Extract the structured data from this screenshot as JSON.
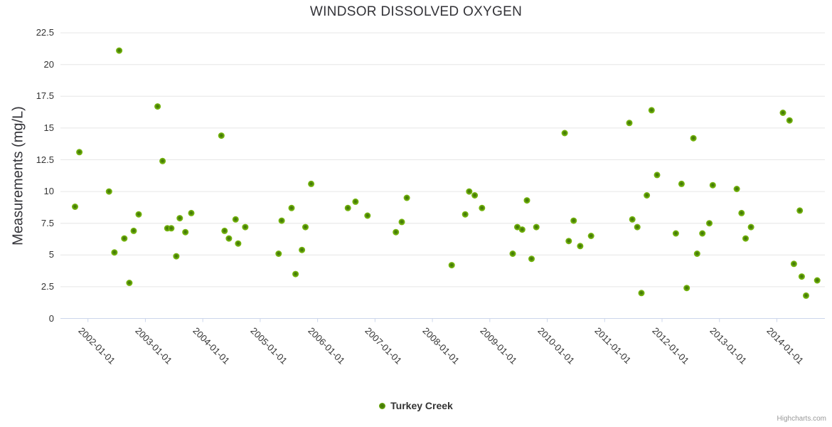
{
  "title": "WINDSOR DISSOLVED OXYGEN",
  "y_axis": {
    "title": "Measurements (mg/L)",
    "ticks": [
      {
        "label": "22.5",
        "value": 22.5
      },
      {
        "label": "20",
        "value": 20
      },
      {
        "label": "17.5",
        "value": 17.5
      },
      {
        "label": "15",
        "value": 15
      },
      {
        "label": "12.5",
        "value": 12.5
      },
      {
        "label": "10",
        "value": 10
      },
      {
        "label": "7.5",
        "value": 7.5
      },
      {
        "label": "5",
        "value": 5
      },
      {
        "label": "2.5",
        "value": 2.5
      },
      {
        "label": "0",
        "value": 0
      }
    ]
  },
  "x_axis": {
    "tick_labels": [
      "2002-01-01",
      "2003-01-01",
      "2004-01-01",
      "2005-01-01",
      "2006-01-01",
      "2007-01-01",
      "2008-01-01",
      "2009-01-01",
      "2010-01-01",
      "2011-01-01",
      "2012-01-01",
      "2013-01-01",
      "2014-01-01"
    ]
  },
  "legend": {
    "series_label": "Turkey Creek"
  },
  "credit": "Highcharts.com",
  "colors": {
    "marker_outer": "#74b40d",
    "marker_mid": "#4c8408",
    "marker_inner": "#3f7407",
    "grid": "#e6e6e6",
    "axis_line": "#ccd6eb",
    "text": "#333333",
    "credit_text": "#999999",
    "background": "#ffffff"
  },
  "chart_data": {
    "type": "scatter",
    "title": "WINDSOR DISSOLVED OXYGEN",
    "xlabel": "",
    "ylabel": "Measurements (mg/L)",
    "ylim": [
      0,
      22.5
    ],
    "x_tick_interval": "1 year",
    "grid": true,
    "legend_position": "bottom-center",
    "series": [
      {
        "name": "Turkey Creek",
        "data": [
          [
            "2001-10-10",
            8.8
          ],
          [
            "2001-11-07",
            13.1
          ],
          [
            "2002-05-13",
            10.0
          ],
          [
            "2002-06-17",
            5.2
          ],
          [
            "2002-07-17",
            21.1
          ],
          [
            "2002-08-19",
            6.3
          ],
          [
            "2002-09-21",
            2.8
          ],
          [
            "2002-10-18",
            6.9
          ],
          [
            "2002-11-19",
            8.2
          ],
          [
            "2003-03-18",
            16.7
          ],
          [
            "2003-04-19",
            12.4
          ],
          [
            "2003-05-19",
            7.1
          ],
          [
            "2003-06-14",
            7.1
          ],
          [
            "2003-07-15",
            4.9
          ],
          [
            "2003-08-07",
            7.9
          ],
          [
            "2003-09-12",
            6.8
          ],
          [
            "2003-10-19",
            8.3
          ],
          [
            "2004-04-28",
            14.4
          ],
          [
            "2004-05-18",
            6.9
          ],
          [
            "2004-06-15",
            6.3
          ],
          [
            "2004-07-27",
            7.8
          ],
          [
            "2004-08-13",
            5.9
          ],
          [
            "2004-09-28",
            7.2
          ],
          [
            "2005-04-27",
            5.1
          ],
          [
            "2005-05-16",
            7.7
          ],
          [
            "2005-07-18",
            8.7
          ],
          [
            "2005-08-13",
            3.5
          ],
          [
            "2005-09-23",
            5.4
          ],
          [
            "2005-10-15",
            7.2
          ],
          [
            "2005-11-21",
            10.6
          ],
          [
            "2006-07-11",
            8.7
          ],
          [
            "2006-08-29",
            9.2
          ],
          [
            "2006-11-14",
            8.1
          ],
          [
            "2007-05-12",
            6.8
          ],
          [
            "2007-06-19",
            7.6
          ],
          [
            "2007-07-21",
            9.5
          ],
          [
            "2008-05-02",
            4.2
          ],
          [
            "2008-07-27",
            8.2
          ],
          [
            "2008-08-22",
            10.0
          ],
          [
            "2008-09-27",
            9.7
          ],
          [
            "2008-11-12",
            8.7
          ],
          [
            "2009-05-25",
            5.1
          ],
          [
            "2009-06-24",
            7.2
          ],
          [
            "2009-07-24",
            7.0
          ],
          [
            "2009-08-24",
            9.3
          ],
          [
            "2009-09-23",
            4.7
          ],
          [
            "2009-10-23",
            7.2
          ],
          [
            "2010-04-21",
            14.6
          ],
          [
            "2010-05-16",
            6.1
          ],
          [
            "2010-06-17",
            7.7
          ],
          [
            "2010-07-28",
            5.7
          ],
          [
            "2010-10-06",
            6.5
          ],
          [
            "2011-06-06",
            15.4
          ],
          [
            "2011-06-25",
            7.8
          ],
          [
            "2011-07-26",
            7.2
          ],
          [
            "2011-08-22",
            2.0
          ],
          [
            "2011-09-26",
            9.7
          ],
          [
            "2011-10-26",
            16.4
          ],
          [
            "2011-11-30",
            11.3
          ],
          [
            "2012-03-28",
            6.7
          ],
          [
            "2012-05-03",
            10.6
          ],
          [
            "2012-06-06",
            2.4
          ],
          [
            "2012-07-18",
            14.2
          ],
          [
            "2012-08-11",
            5.1
          ],
          [
            "2012-09-14",
            6.7
          ],
          [
            "2012-10-28",
            7.5
          ],
          [
            "2012-11-19",
            10.5
          ],
          [
            "2013-04-20",
            10.2
          ],
          [
            "2013-05-20",
            8.3
          ],
          [
            "2013-06-15",
            6.3
          ],
          [
            "2013-07-19",
            7.2
          ],
          [
            "2014-02-09",
            16.2
          ],
          [
            "2014-03-21",
            15.6
          ],
          [
            "2014-04-18",
            4.3
          ],
          [
            "2014-05-25",
            8.5
          ],
          [
            "2014-06-07",
            3.3
          ],
          [
            "2014-07-04",
            1.8
          ],
          [
            "2014-09-14",
            3.0
          ]
        ]
      }
    ]
  }
}
